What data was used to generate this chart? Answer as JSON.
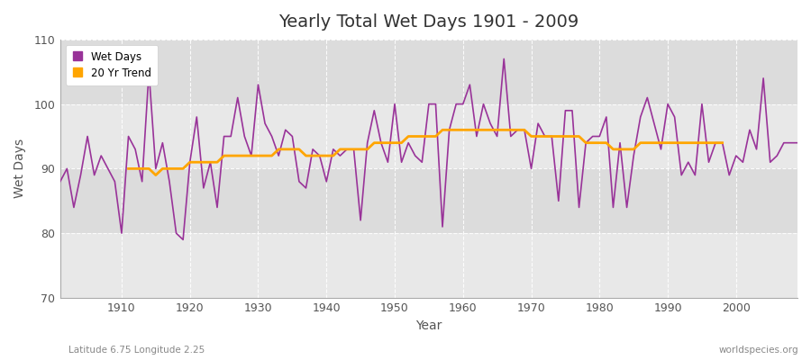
{
  "title": "Yearly Total Wet Days 1901 - 2009",
  "xlabel": "Year",
  "ylabel": "Wet Days",
  "subtitle_left": "Latitude 6.75 Longitude 2.25",
  "subtitle_right": "worldspecies.org",
  "ylim": [
    70,
    110
  ],
  "xlim": [
    1901,
    2009
  ],
  "yticks": [
    70,
    80,
    90,
    100,
    110
  ],
  "xticks": [
    1910,
    1920,
    1930,
    1940,
    1950,
    1960,
    1970,
    1980,
    1990,
    2000
  ],
  "wet_days_color": "#993399",
  "trend_color": "#FFA500",
  "bg_color": "#DCDCDC",
  "legend_wet": "Wet Days",
  "legend_trend": "20 Yr Trend",
  "years": [
    1901,
    1902,
    1903,
    1904,
    1905,
    1906,
    1907,
    1908,
    1909,
    1910,
    1911,
    1912,
    1913,
    1914,
    1915,
    1916,
    1917,
    1918,
    1919,
    1920,
    1921,
    1922,
    1923,
    1924,
    1925,
    1926,
    1927,
    1928,
    1929,
    1930,
    1931,
    1932,
    1933,
    1934,
    1935,
    1936,
    1937,
    1938,
    1939,
    1940,
    1941,
    1942,
    1943,
    1944,
    1945,
    1946,
    1947,
    1948,
    1949,
    1950,
    1951,
    1952,
    1953,
    1954,
    1955,
    1956,
    1957,
    1958,
    1959,
    1960,
    1961,
    1962,
    1963,
    1964,
    1965,
    1966,
    1967,
    1968,
    1969,
    1970,
    1971,
    1972,
    1973,
    1974,
    1975,
    1976,
    1977,
    1978,
    1979,
    1980,
    1981,
    1982,
    1983,
    1984,
    1985,
    1986,
    1987,
    1988,
    1989,
    1990,
    1991,
    1992,
    1993,
    1994,
    1995,
    1996,
    1997,
    1998,
    1999,
    2000,
    2001,
    2002,
    2003,
    2004,
    2005,
    2006,
    2007,
    2008,
    2009
  ],
  "wet_days": [
    88,
    90,
    84,
    89,
    95,
    89,
    92,
    90,
    88,
    80,
    95,
    93,
    88,
    105,
    90,
    94,
    88,
    80,
    79,
    91,
    98,
    87,
    91,
    84,
    95,
    95,
    101,
    95,
    92,
    103,
    97,
    95,
    92,
    96,
    95,
    88,
    87,
    93,
    92,
    88,
    93,
    92,
    93,
    93,
    82,
    94,
    99,
    94,
    91,
    100,
    91,
    94,
    92,
    91,
    100,
    100,
    81,
    96,
    100,
    100,
    103,
    95,
    100,
    97,
    95,
    107,
    95,
    96,
    96,
    90,
    97,
    95,
    95,
    85,
    99,
    99,
    84,
    94,
    95,
    95,
    98,
    84,
    94,
    84,
    92,
    98,
    101,
    97,
    93,
    100,
    98,
    89,
    91,
    89,
    100,
    91,
    94,
    94,
    89,
    92,
    91,
    96,
    93,
    104,
    91,
    92,
    94,
    94,
    94
  ],
  "trend": [
    null,
    null,
    null,
    null,
    null,
    null,
    null,
    null,
    null,
    null,
    90,
    90,
    90,
    90,
    89,
    90,
    90,
    90,
    90,
    91,
    91,
    91,
    91,
    91,
    92,
    92,
    92,
    92,
    92,
    92,
    92,
    92,
    93,
    93,
    93,
    93,
    92,
    92,
    92,
    92,
    92,
    93,
    93,
    93,
    93,
    93,
    94,
    94,
    94,
    94,
    94,
    95,
    95,
    95,
    95,
    95,
    96,
    96,
    96,
    96,
    96,
    96,
    96,
    96,
    96,
    96,
    96,
    96,
    96,
    95,
    95,
    95,
    95,
    95,
    95,
    95,
    95,
    94,
    94,
    94,
    94,
    93,
    93,
    93,
    93,
    94,
    94,
    94,
    94,
    94,
    94,
    94,
    94,
    94,
    94,
    94,
    94,
    94,
    null,
    null,
    null,
    null,
    null,
    null,
    null,
    null,
    null,
    null,
    null
  ]
}
